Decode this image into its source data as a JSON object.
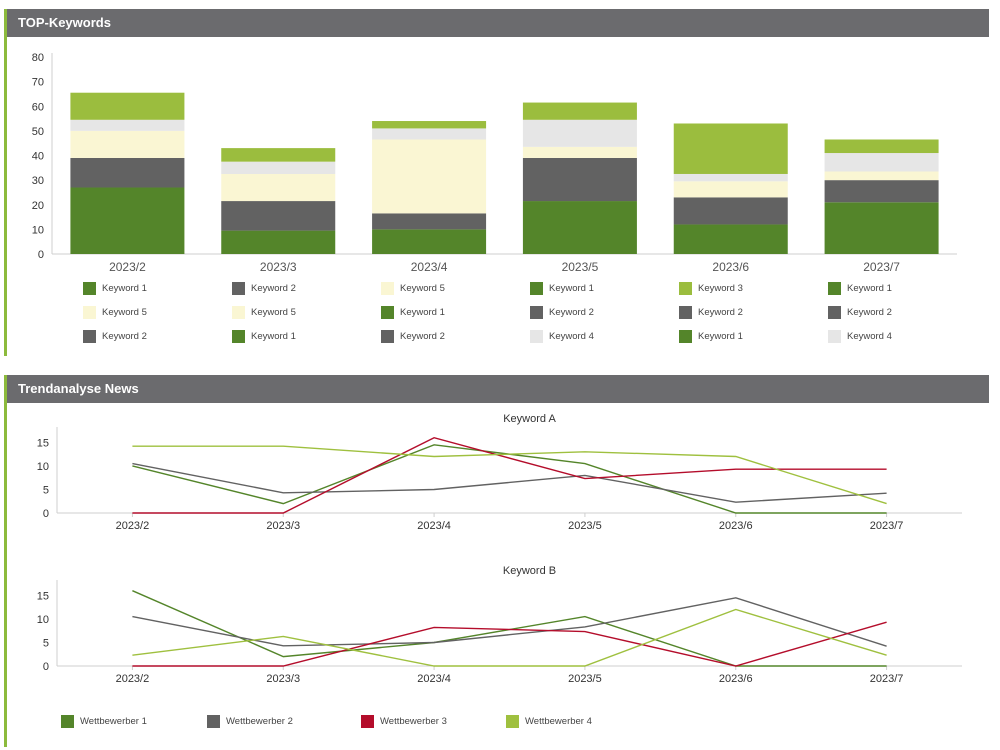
{
  "panels": {
    "top_title": "TOP-Keywords",
    "news_title": "Trendanalyse News"
  },
  "colors": {
    "dark_green": "#54852a",
    "dark_grey": "#626262",
    "cream": "#faf6d3",
    "light_green": "#9bbd3e",
    "light_grey": "#e6e6e6",
    "red": "#b40d2b",
    "lime": "#9fc03f",
    "accent": "#8cba3c"
  },
  "chart_data": [
    {
      "type": "bar",
      "stacked": true,
      "title": "",
      "categories": [
        "2023/2",
        "2023/3",
        "2023/4",
        "2023/5",
        "2023/6",
        "2023/7"
      ],
      "ylim": [
        0,
        80
      ],
      "yticks": [
        0,
        10,
        20,
        30,
        40,
        50,
        60,
        70,
        80
      ],
      "grid": false,
      "stacks": [
        [
          {
            "name": "Keyword 1",
            "value": 27,
            "color": "#54852a"
          },
          {
            "name": "Keyword 2",
            "value": 12,
            "color": "#626262"
          },
          {
            "name": "Keyword 5",
            "value": 11,
            "color": "#faf6d3"
          },
          {
            "name": "Keyword 4",
            "value": 4.5,
            "color": "#e6e6e6"
          },
          {
            "name": "Keyword 3",
            "value": 11,
            "color": "#9bbd3e"
          }
        ],
        [
          {
            "name": "Keyword 1",
            "value": 9.5,
            "color": "#54852a"
          },
          {
            "name": "Keyword 2",
            "value": 12,
            "color": "#626262"
          },
          {
            "name": "Keyword 5",
            "value": 11,
            "color": "#faf6d3"
          },
          {
            "name": "Keyword 4",
            "value": 5,
            "color": "#e6e6e6"
          },
          {
            "name": "Keyword 3",
            "value": 5.5,
            "color": "#9bbd3e"
          }
        ],
        [
          {
            "name": "Keyword 1",
            "value": 10,
            "color": "#54852a"
          },
          {
            "name": "Keyword 2",
            "value": 6.5,
            "color": "#626262"
          },
          {
            "name": "Keyword 5",
            "value": 30,
            "color": "#faf6d3"
          },
          {
            "name": "Keyword 4",
            "value": 4.5,
            "color": "#e6e6e6"
          },
          {
            "name": "Keyword 3",
            "value": 3,
            "color": "#9bbd3e"
          }
        ],
        [
          {
            "name": "Keyword 1",
            "value": 21.5,
            "color": "#54852a"
          },
          {
            "name": "Keyword 2",
            "value": 17.5,
            "color": "#626262"
          },
          {
            "name": "Keyword 5",
            "value": 4.5,
            "color": "#faf6d3"
          },
          {
            "name": "Keyword 4",
            "value": 11,
            "color": "#e6e6e6"
          },
          {
            "name": "Keyword 3",
            "value": 7,
            "color": "#9bbd3e"
          }
        ],
        [
          {
            "name": "Keyword 1",
            "value": 12,
            "color": "#54852a"
          },
          {
            "name": "Keyword 2",
            "value": 11,
            "color": "#626262"
          },
          {
            "name": "Keyword 5",
            "value": 6.5,
            "color": "#faf6d3"
          },
          {
            "name": "Keyword 4",
            "value": 3,
            "color": "#e6e6e6"
          },
          {
            "name": "Keyword 3",
            "value": 20.5,
            "color": "#9bbd3e"
          }
        ],
        [
          {
            "name": "Keyword 1",
            "value": 21,
            "color": "#54852a"
          },
          {
            "name": "Keyword 2",
            "value": 9,
            "color": "#626262"
          },
          {
            "name": "Keyword 5",
            "value": 3.5,
            "color": "#faf6d3"
          },
          {
            "name": "Keyword 4",
            "value": 7.5,
            "color": "#e6e6e6"
          },
          {
            "name": "Keyword 3",
            "value": 5.5,
            "color": "#9bbd3e"
          }
        ]
      ],
      "legend": [
        [
          {
            "name": "Keyword 1",
            "color": "#54852a"
          },
          {
            "name": "Keyword 5",
            "color": "#faf6d3"
          },
          {
            "name": "Keyword 2",
            "color": "#626262"
          }
        ],
        [
          {
            "name": "Keyword 2",
            "color": "#626262"
          },
          {
            "name": "Keyword 5",
            "color": "#faf6d3"
          },
          {
            "name": "Keyword 1",
            "color": "#54852a"
          }
        ],
        [
          {
            "name": "Keyword 5",
            "color": "#faf6d3"
          },
          {
            "name": "Keyword 1",
            "color": "#54852a"
          },
          {
            "name": "Keyword 2",
            "color": "#626262"
          }
        ],
        [
          {
            "name": "Keyword 1",
            "color": "#54852a"
          },
          {
            "name": "Keyword 2",
            "color": "#626262"
          },
          {
            "name": "Keyword 4",
            "color": "#e6e6e6"
          }
        ],
        [
          {
            "name": "Keyword 3",
            "color": "#9bbd3e"
          },
          {
            "name": "Keyword 2",
            "color": "#626262"
          },
          {
            "name": "Keyword 1",
            "color": "#54852a"
          }
        ],
        [
          {
            "name": "Keyword 1",
            "color": "#54852a"
          },
          {
            "name": "Keyword 2",
            "color": "#626262"
          },
          {
            "name": "Keyword 4",
            "color": "#e6e6e6"
          }
        ]
      ]
    },
    {
      "type": "line",
      "title": "Keyword A",
      "categories": [
        "2023/2",
        "2023/3",
        "2023/4",
        "2023/5",
        "2023/6",
        "2023/7"
      ],
      "ylim": [
        0,
        17
      ],
      "yticks": [
        0,
        5,
        10,
        15
      ],
      "series": [
        {
          "name": "Wettbewerber 1",
          "color": "#54852a",
          "values": [
            10,
            2,
            14.5,
            10.5,
            0,
            0
          ]
        },
        {
          "name": "Wettbewerber 2",
          "color": "#626262",
          "values": [
            10.5,
            4.3,
            5,
            8,
            2.3,
            4.2
          ]
        },
        {
          "name": "Wettbewerber 3",
          "color": "#b40d2b",
          "values": [
            0,
            0,
            16,
            7.3,
            9.3,
            9.3
          ]
        },
        {
          "name": "Wettbewerber 4",
          "color": "#9fc03f",
          "values": [
            14.2,
            14.2,
            12,
            13,
            12,
            2
          ]
        }
      ]
    },
    {
      "type": "line",
      "title": "Keyword B",
      "categories": [
        "2023/2",
        "2023/3",
        "2023/4",
        "2023/5",
        "2023/6",
        "2023/7"
      ],
      "ylim": [
        0,
        17
      ],
      "yticks": [
        0,
        5,
        10,
        15
      ],
      "series": [
        {
          "name": "Wettbewerber 1",
          "color": "#54852a",
          "values": [
            16,
            2,
            5,
            10.5,
            0,
            0
          ]
        },
        {
          "name": "Wettbewerber 2",
          "color": "#626262",
          "values": [
            10.5,
            4.3,
            5,
            8.3,
            14.5,
            4.2
          ]
        },
        {
          "name": "Wettbewerber 3",
          "color": "#b40d2b",
          "values": [
            0,
            0,
            8.2,
            7.3,
            0,
            9.3
          ]
        },
        {
          "name": "Wettbewerber 4",
          "color": "#9fc03f",
          "values": [
            2.3,
            6.3,
            0,
            0,
            12,
            2.3
          ]
        }
      ],
      "legend": [
        {
          "name": "Wettbewerber 1",
          "color": "#54852a"
        },
        {
          "name": "Wettbewerber 2",
          "color": "#626262"
        },
        {
          "name": "Wettbewerber 3",
          "color": "#b40d2b"
        },
        {
          "name": "Wettbewerber 4",
          "color": "#9fc03f"
        }
      ]
    }
  ]
}
